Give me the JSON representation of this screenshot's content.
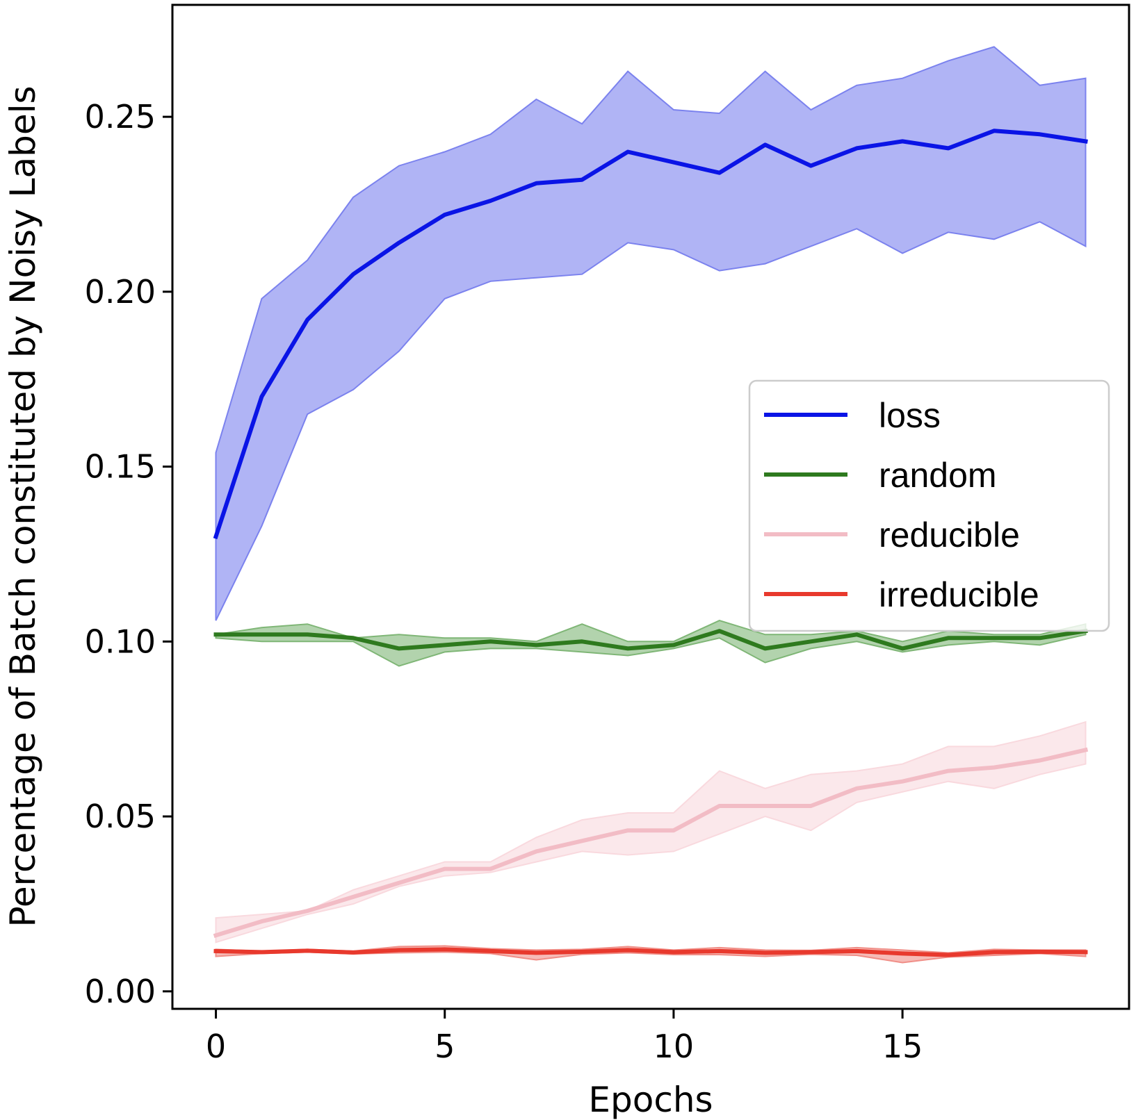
{
  "chart_data": {
    "type": "line",
    "title": "",
    "xlabel": "Epochs",
    "ylabel": "Percentage of Batch constituted by Noisy Labels",
    "xlim": [
      -0.95,
      19.95
    ],
    "ylim": [
      -0.005,
      0.282
    ],
    "xticks": [
      0,
      5,
      10,
      15
    ],
    "xtick_labels": [
      "0",
      "5",
      "10",
      "15"
    ],
    "yticks": [
      0.0,
      0.05,
      0.1,
      0.15,
      0.2,
      0.25
    ],
    "ytick_labels": [
      "0.00",
      "0.05",
      "0.10",
      "0.15",
      "0.20",
      "0.25"
    ],
    "grid": false,
    "legend_position": "center-right",
    "x": [
      0,
      1,
      2,
      3,
      4,
      5,
      6,
      7,
      8,
      9,
      10,
      11,
      12,
      13,
      14,
      15,
      16,
      17,
      18,
      19
    ],
    "series": [
      {
        "name": "loss",
        "color": "#0a14e6",
        "band_color": "#7b82ee",
        "values": [
          0.13,
          0.17,
          0.192,
          0.205,
          0.214,
          0.222,
          0.226,
          0.231,
          0.232,
          0.24,
          0.237,
          0.234,
          0.242,
          0.236,
          0.241,
          0.243,
          0.241,
          0.246,
          0.245,
          0.243
        ],
        "upper": [
          0.154,
          0.198,
          0.209,
          0.227,
          0.236,
          0.24,
          0.245,
          0.255,
          0.248,
          0.263,
          0.252,
          0.251,
          0.263,
          0.252,
          0.259,
          0.261,
          0.266,
          0.27,
          0.259,
          0.261
        ],
        "lower": [
          0.106,
          0.133,
          0.165,
          0.172,
          0.183,
          0.198,
          0.203,
          0.204,
          0.205,
          0.214,
          0.212,
          0.206,
          0.208,
          0.213,
          0.218,
          0.211,
          0.217,
          0.215,
          0.22,
          0.213
        ]
      },
      {
        "name": "random",
        "color": "#2e7a1e",
        "band_color": "#7fb676",
        "values": [
          0.102,
          0.102,
          0.102,
          0.101,
          0.098,
          0.099,
          0.1,
          0.099,
          0.1,
          0.098,
          0.099,
          0.103,
          0.098,
          0.1,
          0.102,
          0.098,
          0.101,
          0.101,
          0.101,
          0.103
        ],
        "upper": [
          0.102,
          0.104,
          0.105,
          0.101,
          0.102,
          0.101,
          0.101,
          0.1,
          0.105,
          0.1,
          0.1,
          0.106,
          0.102,
          0.102,
          0.103,
          0.1,
          0.103,
          0.102,
          0.102,
          0.105
        ],
        "lower": [
          0.101,
          0.1,
          0.1,
          0.1,
          0.093,
          0.097,
          0.098,
          0.098,
          0.097,
          0.096,
          0.098,
          0.101,
          0.094,
          0.098,
          0.1,
          0.097,
          0.099,
          0.1,
          0.099,
          0.102
        ]
      },
      {
        "name": "reducible",
        "color": "#f2bcc5",
        "band_color": "#f9d9de",
        "values": [
          0.016,
          0.02,
          0.023,
          0.027,
          0.031,
          0.035,
          0.035,
          0.04,
          0.043,
          0.046,
          0.046,
          0.053,
          0.053,
          0.053,
          0.058,
          0.06,
          0.063,
          0.064,
          0.066,
          0.069
        ],
        "upper": [
          0.021,
          0.022,
          0.023,
          0.029,
          0.033,
          0.037,
          0.037,
          0.044,
          0.049,
          0.051,
          0.051,
          0.063,
          0.058,
          0.062,
          0.063,
          0.065,
          0.07,
          0.07,
          0.073,
          0.077
        ],
        "lower": [
          0.014,
          0.018,
          0.022,
          0.025,
          0.03,
          0.033,
          0.034,
          0.037,
          0.04,
          0.039,
          0.04,
          0.045,
          0.05,
          0.046,
          0.054,
          0.057,
          0.06,
          0.058,
          0.062,
          0.065
        ]
      },
      {
        "name": "irreducible",
        "color": "#e8392d",
        "band_color": "#f08e87",
        "values": [
          0.0115,
          0.0112,
          0.0116,
          0.0111,
          0.0118,
          0.012,
          0.0115,
          0.011,
          0.0113,
          0.0118,
          0.0112,
          0.0115,
          0.011,
          0.0112,
          0.0115,
          0.0108,
          0.0104,
          0.0112,
          0.0113,
          0.0112
        ],
        "upper": [
          0.012,
          0.0115,
          0.012,
          0.0115,
          0.0128,
          0.013,
          0.0122,
          0.0118,
          0.012,
          0.0128,
          0.0118,
          0.0125,
          0.0118,
          0.0117,
          0.0125,
          0.0118,
          0.011,
          0.012,
          0.0118,
          0.0118
        ],
        "lower": [
          0.01,
          0.0108,
          0.0112,
          0.0107,
          0.011,
          0.0112,
          0.0108,
          0.009,
          0.0106,
          0.011,
          0.0105,
          0.0105,
          0.01,
          0.0106,
          0.0103,
          0.0082,
          0.0098,
          0.0103,
          0.0108,
          0.01
        ]
      }
    ]
  }
}
